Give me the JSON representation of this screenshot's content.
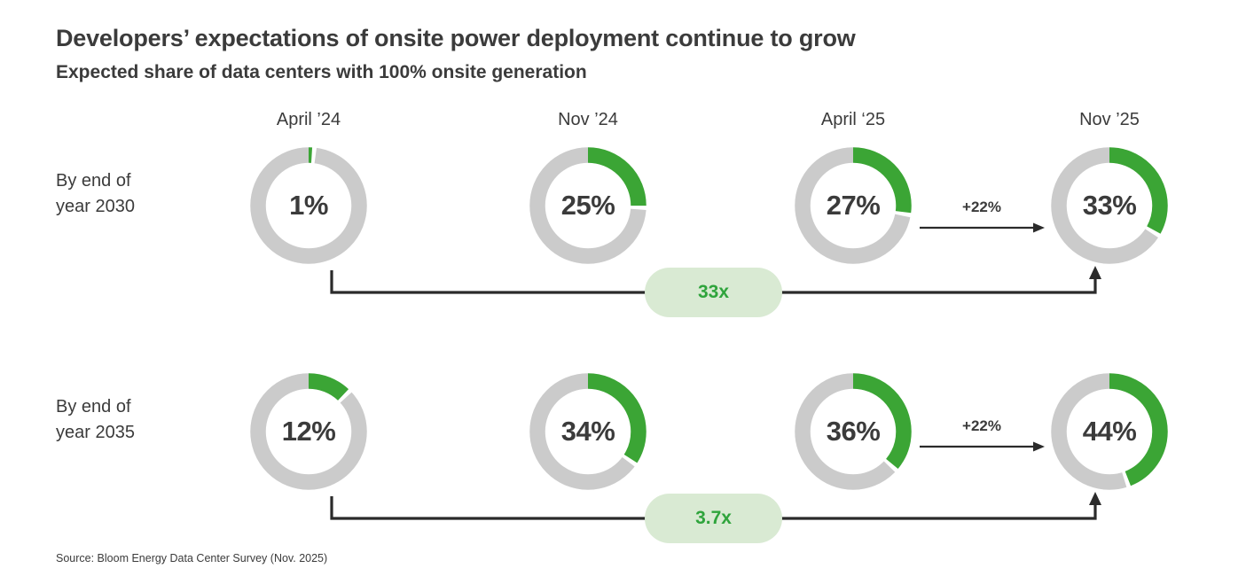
{
  "header": {
    "title": "Developers’ expectations of onsite power deployment continue to grow",
    "subtitle": "Expected share of data centers with 100% onsite generation"
  },
  "source": "Source: Bloom Energy Data Center Survey (Nov. 2025)",
  "colors": {
    "donut_green": "#3BA535",
    "donut_track_gray": "#CBCBCB",
    "badge_bg_light_green": "#D9EAD3",
    "badge_text_green": "#2FA43C",
    "text_dark": "#3B3B3B",
    "arrow_dark": "#2B2B2B"
  },
  "chart_data": {
    "type": "donut-grid",
    "title": "Developers’ expectations of onsite power deployment continue to grow",
    "subtitle": "Expected share of data centers with 100% onsite generation",
    "unit": "% of data centers with 100% onsite generation",
    "categories": [
      "April ’24",
      "Nov ’24",
      "April ‘25",
      "Nov ’25"
    ],
    "rows": [
      {
        "row_label": "By end of\nyear 2030",
        "values": [
          1,
          25,
          27,
          33
        ],
        "value_labels": [
          "1%",
          "25%",
          "27%",
          "33%"
        ],
        "delta_label": "+22%",
        "multiplier_label": "33x"
      },
      {
        "row_label": "By end of\nyear 2035",
        "values": [
          12,
          34,
          36,
          44
        ],
        "value_labels": [
          "12%",
          "34%",
          "36%",
          "44%"
        ],
        "delta_label": "+22%",
        "multiplier_label": "3.7x"
      }
    ],
    "legend": "off",
    "grid": "off",
    "value_range": [
      0,
      100
    ]
  }
}
